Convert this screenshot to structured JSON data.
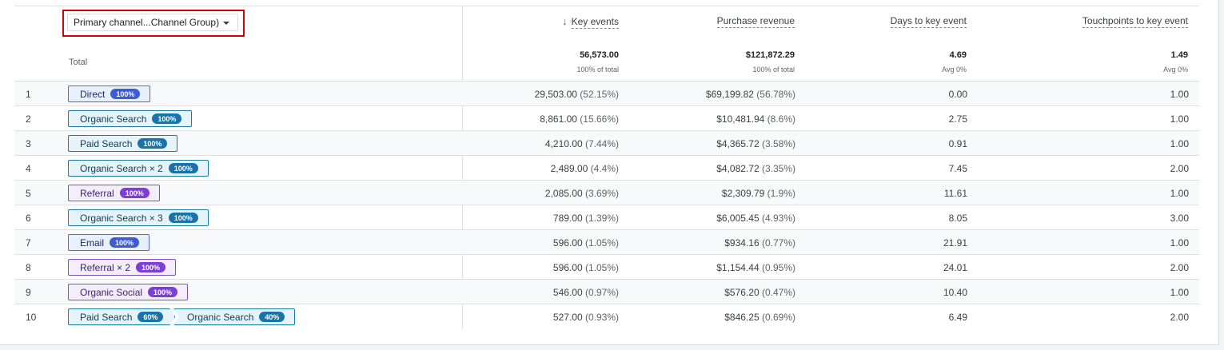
{
  "dimension_selector": {
    "label": "Primary channel...Channel Group)"
  },
  "headers": {
    "key_events": "Key events",
    "purchase_revenue": "Purchase revenue",
    "days": "Days to key event",
    "touchpoints": "Touchpoints to key event",
    "sort_arrow": "↓"
  },
  "totals": {
    "label": "Total",
    "key_events": "56,573.00",
    "key_events_sub": "100% of total",
    "purchase_revenue": "$121,872.29",
    "purchase_revenue_sub": "100% of total",
    "days": "4.69",
    "days_sub": "Avg 0%",
    "touchpoints": "1.49",
    "touchpoints_sub": "Avg 0%"
  },
  "rows": [
    {
      "idx": "1",
      "path": [
        {
          "label": "Direct",
          "badge": "100%",
          "color": "blue"
        }
      ],
      "key_events": "29,503.00",
      "key_events_pct": "(52.15%)",
      "revenue": "$69,199.82",
      "revenue_pct": "(56.78%)",
      "days": "0.00",
      "touchpoints": "1.00"
    },
    {
      "idx": "2",
      "path": [
        {
          "label": "Organic Search",
          "badge": "100%",
          "color": "teal"
        }
      ],
      "key_events": "8,861.00",
      "key_events_pct": "(15.66%)",
      "revenue": "$10,481.94",
      "revenue_pct": "(8.6%)",
      "days": "2.75",
      "touchpoints": "1.00"
    },
    {
      "idx": "3",
      "path": [
        {
          "label": "Paid Search",
          "badge": "100%",
          "color": "teal"
        }
      ],
      "key_events": "4,210.00",
      "key_events_pct": "(7.44%)",
      "revenue": "$4,365.72",
      "revenue_pct": "(3.58%)",
      "days": "0.91",
      "touchpoints": "1.00"
    },
    {
      "idx": "4",
      "path": [
        {
          "label": "Organic Search × 2",
          "badge": "100%",
          "color": "teal"
        }
      ],
      "key_events": "2,489.00",
      "key_events_pct": "(4.4%)",
      "revenue": "$4,082.72",
      "revenue_pct": "(3.35%)",
      "days": "7.45",
      "touchpoints": "2.00"
    },
    {
      "idx": "5",
      "path": [
        {
          "label": "Referral",
          "badge": "100%",
          "color": "purple"
        }
      ],
      "key_events": "2,085.00",
      "key_events_pct": "(3.69%)",
      "revenue": "$2,309.79",
      "revenue_pct": "(1.9%)",
      "days": "11.61",
      "touchpoints": "1.00"
    },
    {
      "idx": "6",
      "path": [
        {
          "label": "Organic Search × 3",
          "badge": "100%",
          "color": "teal"
        }
      ],
      "key_events": "789.00",
      "key_events_pct": "(1.39%)",
      "revenue": "$6,005.45",
      "revenue_pct": "(4.93%)",
      "days": "8.05",
      "touchpoints": "3.00"
    },
    {
      "idx": "7",
      "path": [
        {
          "label": "Email",
          "badge": "100%",
          "color": "blue"
        }
      ],
      "key_events": "596.00",
      "key_events_pct": "(1.05%)",
      "revenue": "$934.16",
      "revenue_pct": "(0.77%)",
      "days": "21.91",
      "touchpoints": "1.00"
    },
    {
      "idx": "8",
      "path": [
        {
          "label": "Referral × 2",
          "badge": "100%",
          "color": "purple"
        }
      ],
      "key_events": "596.00",
      "key_events_pct": "(1.05%)",
      "revenue": "$1,154.44",
      "revenue_pct": "(0.95%)",
      "days": "24.01",
      "touchpoints": "2.00"
    },
    {
      "idx": "9",
      "path": [
        {
          "label": "Organic Social",
          "badge": "100%",
          "color": "purple"
        }
      ],
      "key_events": "546.00",
      "key_events_pct": "(0.97%)",
      "revenue": "$576.20",
      "revenue_pct": "(0.47%)",
      "days": "10.40",
      "touchpoints": "1.00"
    },
    {
      "idx": "10",
      "path": [
        {
          "label": "Paid Search",
          "badge": "60%",
          "color": "teal"
        },
        {
          "label": "Organic Search",
          "badge": "40%",
          "color": "teal"
        }
      ],
      "key_events": "527.00",
      "key_events_pct": "(0.93%)",
      "revenue": "$846.25",
      "revenue_pct": "(0.69%)",
      "days": "6.49",
      "touchpoints": "2.00"
    }
  ]
}
